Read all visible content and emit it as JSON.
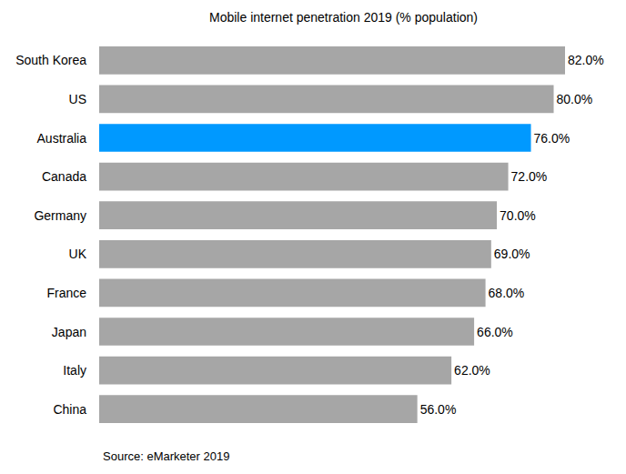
{
  "chart_data": {
    "type": "bar",
    "orientation": "horizontal",
    "title": "Mobile internet penetration 2019 (% population)",
    "source": "Source: eMarketer 2019",
    "categories": [
      "South Korea",
      "US",
      "Australia",
      "Canada",
      "Germany",
      "UK",
      "France",
      "Japan",
      "Italy",
      "China"
    ],
    "values": [
      82,
      80,
      76,
      72,
      70,
      69,
      68,
      66,
      62,
      56
    ],
    "value_labels": [
      "82.0%",
      "80.0%",
      "76.0%",
      "72.0%",
      "70.0%",
      "69.0%",
      "68.0%",
      "66.0%",
      "62.0%",
      "56.0%"
    ],
    "colors": [
      "#a6a6a6",
      "#a6a6a6",
      "#0099ff",
      "#a6a6a6",
      "#a6a6a6",
      "#a6a6a6",
      "#a6a6a6",
      "#a6a6a6",
      "#a6a6a6",
      "#a6a6a6"
    ],
    "xlim": [
      0,
      82
    ],
    "grid": false,
    "data_labels": true,
    "tick_labels": "y"
  }
}
